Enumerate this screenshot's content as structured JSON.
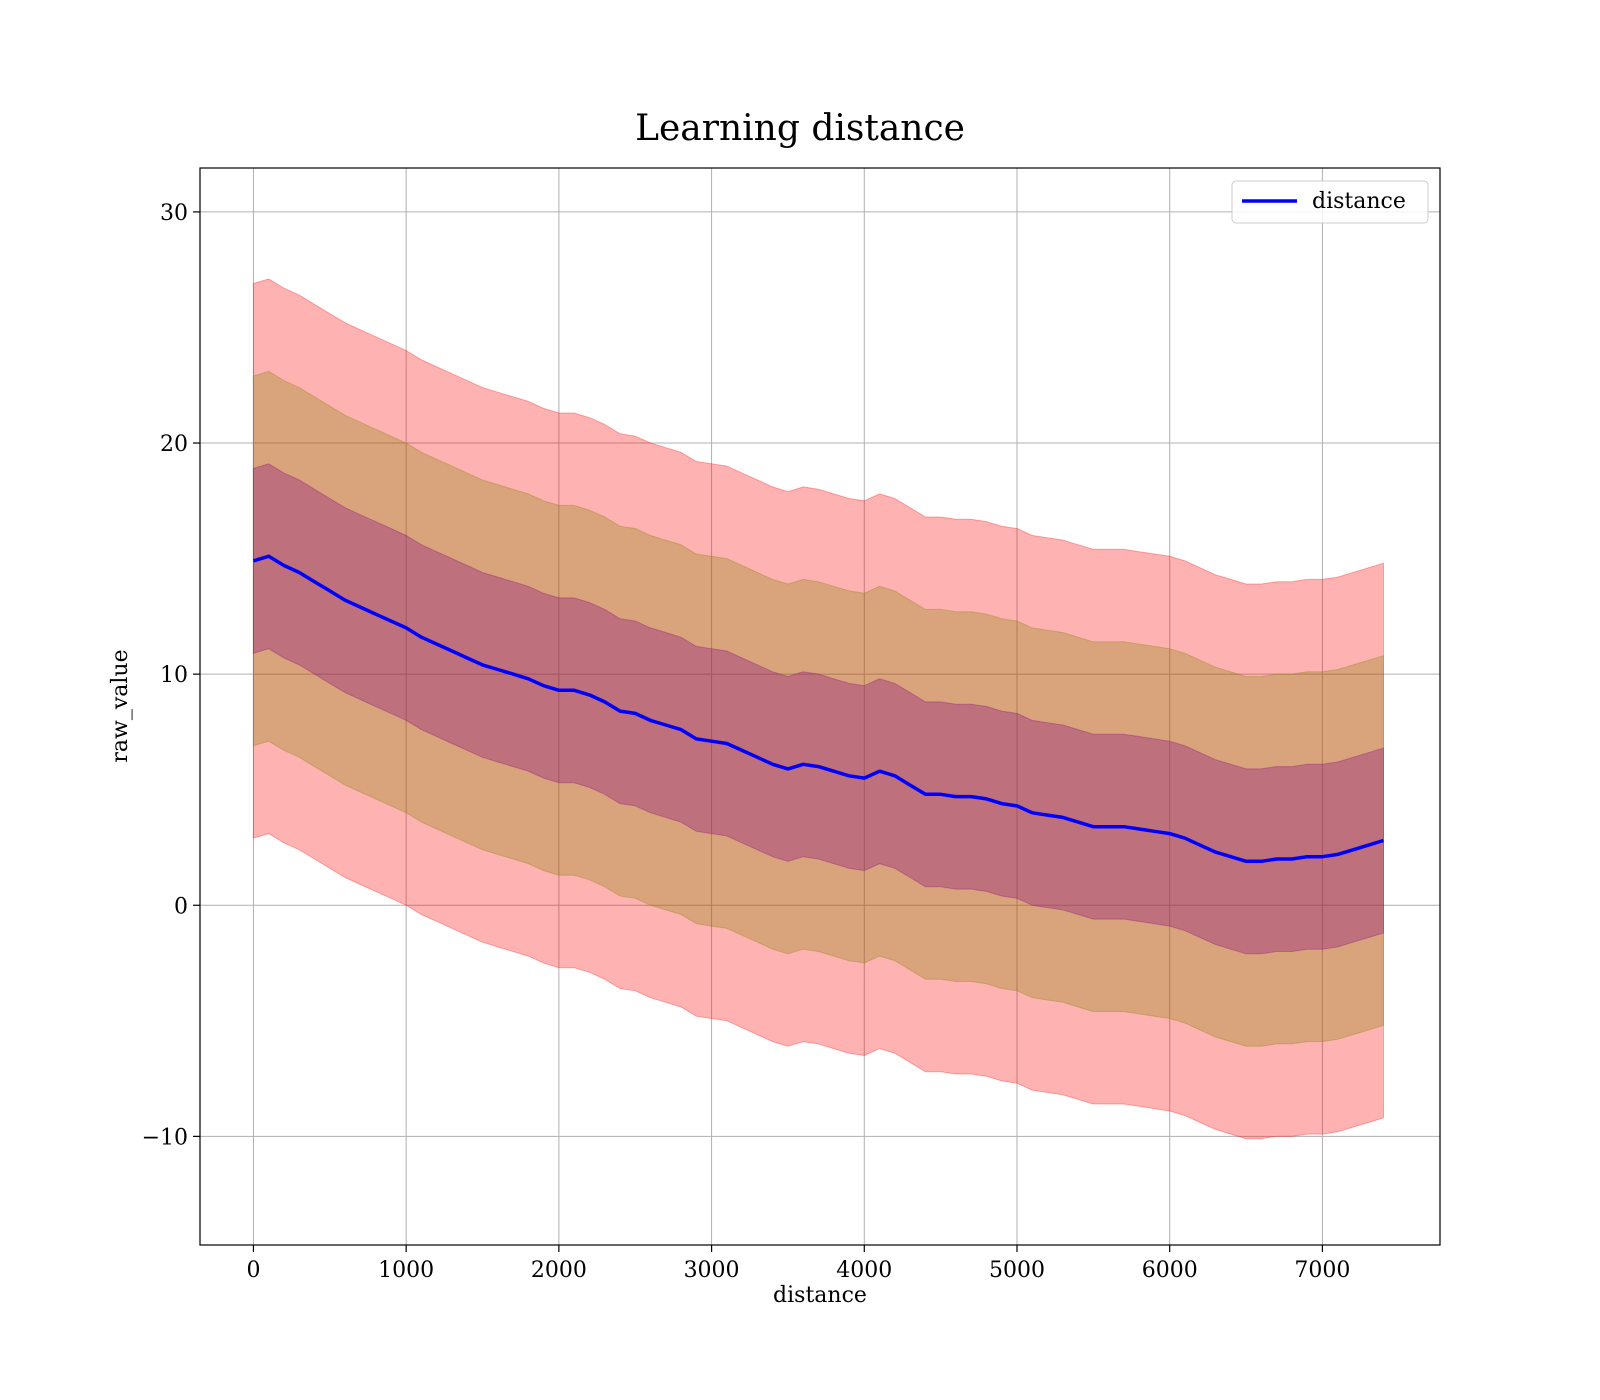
{
  "chart_data": {
    "type": "line",
    "title": "Learning distance",
    "xlabel": "distance",
    "ylabel": "raw_value",
    "xlim": [
      -350,
      7770
    ],
    "ylim": [
      -14.7,
      31.9
    ],
    "xticks": [
      0,
      1000,
      2000,
      3000,
      4000,
      5000,
      6000,
      7000
    ],
    "yticks": [
      -10,
      0,
      10,
      20,
      30
    ],
    "ytick_labels": [
      "−10",
      "0",
      "10",
      "20",
      "30"
    ],
    "grid": true,
    "legend": {
      "position": "top-right",
      "entries": [
        "distance"
      ]
    },
    "series": [
      {
        "name": "distance",
        "color": "#0000ff",
        "x": [
          0,
          100,
          200,
          300,
          400,
          500,
          600,
          700,
          800,
          900,
          1000,
          1100,
          1200,
          1300,
          1400,
          1500,
          1600,
          1700,
          1800,
          1900,
          2000,
          2100,
          2200,
          2300,
          2400,
          2500,
          2600,
          2700,
          2800,
          2900,
          3000,
          3100,
          3200,
          3300,
          3400,
          3500,
          3600,
          3700,
          3800,
          3900,
          4000,
          4100,
          4200,
          4300,
          4400,
          4500,
          4600,
          4700,
          4800,
          4900,
          5000,
          5100,
          5200,
          5300,
          5400,
          5500,
          5600,
          5700,
          5800,
          5900,
          6000,
          6100,
          6200,
          6300,
          6400,
          6500,
          6600,
          6700,
          6800,
          6900,
          7000,
          7100,
          7200,
          7300,
          7400
        ],
        "mean": [
          14.9,
          15.1,
          14.7,
          14.4,
          14.0,
          13.6,
          13.2,
          12.9,
          12.6,
          12.3,
          12.0,
          11.6,
          11.3,
          11.0,
          10.7,
          10.4,
          10.2,
          10.0,
          9.8,
          9.5,
          9.3,
          9.3,
          9.1,
          8.8,
          8.4,
          8.3,
          8.0,
          7.8,
          7.6,
          7.2,
          7.1,
          7.0,
          6.7,
          6.4,
          6.1,
          5.9,
          6.1,
          6.0,
          5.8,
          5.6,
          5.5,
          5.8,
          5.6,
          5.2,
          4.8,
          4.8,
          4.7,
          4.7,
          4.6,
          4.4,
          4.3,
          4.0,
          3.9,
          3.8,
          3.6,
          3.4,
          3.4,
          3.4,
          3.3,
          3.2,
          3.1,
          2.9,
          2.6,
          2.3,
          2.1,
          1.9,
          1.9,
          2.0,
          2.0,
          2.1,
          2.1,
          2.2,
          2.4,
          2.6,
          2.8
        ],
        "sd": [
          4.0,
          4.0,
          4.0,
          4.0,
          4.0,
          4.0,
          4.0,
          4.0,
          4.0,
          4.0,
          4.0,
          4.0,
          4.0,
          4.0,
          4.0,
          4.0,
          4.0,
          4.0,
          4.0,
          4.0,
          4.0,
          4.0,
          4.0,
          4.0,
          4.0,
          4.0,
          4.0,
          4.0,
          4.0,
          4.0,
          4.0,
          4.0,
          4.0,
          4.0,
          4.0,
          4.0,
          4.0,
          4.0,
          4.0,
          4.0,
          4.0,
          4.0,
          4.0,
          4.0,
          4.0,
          4.0,
          4.0,
          4.0,
          4.0,
          4.0,
          4.0,
          4.0,
          4.0,
          4.0,
          4.0,
          4.0,
          4.0,
          4.0,
          4.0,
          4.0,
          4.0,
          4.0,
          4.0,
          4.0,
          4.0,
          4.0,
          4.0,
          4.0,
          4.0,
          4.0,
          4.0,
          4.0,
          4.0,
          4.0,
          4.0
        ],
        "bands": [
          {
            "sd_multiplier": 3,
            "color": "#ff0000",
            "opacity": 0.3
          },
          {
            "sd_multiplier": 2,
            "color": "#808000",
            "opacity": 0.3
          },
          {
            "sd_multiplier": 1,
            "color": "#800080",
            "opacity": 0.3
          }
        ]
      }
    ]
  }
}
